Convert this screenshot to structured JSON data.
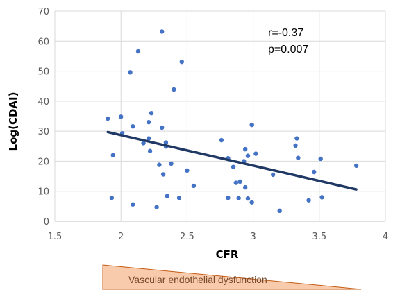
{
  "chart_data": {
    "type": "scatter",
    "xlabel": "CFR",
    "ylabel": "Log(CDAI)",
    "xlim": [
      1.5,
      4
    ],
    "ylim": [
      0,
      70
    ],
    "xticks": [
      "1.5",
      "2",
      "2.5",
      "3",
      "3.5",
      "4"
    ],
    "yticks": [
      "0",
      "10",
      "20",
      "30",
      "40",
      "50",
      "60",
      "70"
    ],
    "grid": "vertical and horizontal gridlines",
    "series": [
      {
        "marker_color": "#4472c4",
        "points": [
          [
            1.9,
            34.2
          ],
          [
            1.93,
            7.8
          ],
          [
            1.94,
            22.0
          ],
          [
            2.0,
            34.8
          ],
          [
            2.01,
            29.3
          ],
          [
            2.07,
            49.6
          ],
          [
            2.09,
            31.6
          ],
          [
            2.09,
            5.6
          ],
          [
            2.13,
            56.6
          ],
          [
            2.17,
            26.0
          ],
          [
            2.21,
            33.0
          ],
          [
            2.21,
            27.6
          ],
          [
            2.22,
            23.4
          ],
          [
            2.23,
            36.0
          ],
          [
            2.27,
            4.7
          ],
          [
            2.29,
            18.8
          ],
          [
            2.31,
            63.2
          ],
          [
            2.31,
            31.2
          ],
          [
            2.32,
            15.6
          ],
          [
            2.34,
            26.2
          ],
          [
            2.34,
            24.9
          ],
          [
            2.35,
            8.4
          ],
          [
            2.38,
            19.2
          ],
          [
            2.4,
            43.9
          ],
          [
            2.44,
            7.8
          ],
          [
            2.46,
            53.1
          ],
          [
            2.5,
            16.9
          ],
          [
            2.55,
            11.8
          ],
          [
            2.76,
            27.0
          ],
          [
            2.81,
            21.0
          ],
          [
            2.81,
            7.8
          ],
          [
            2.85,
            18.1
          ],
          [
            2.87,
            12.8
          ],
          [
            2.89,
            7.7
          ],
          [
            2.9,
            13.2
          ],
          [
            2.93,
            20.0
          ],
          [
            2.94,
            24.0
          ],
          [
            2.94,
            11.3
          ],
          [
            2.96,
            7.6
          ],
          [
            2.96,
            21.8
          ],
          [
            2.99,
            32.1
          ],
          [
            2.99,
            6.3
          ],
          [
            3.02,
            22.5
          ],
          [
            3.15,
            15.5
          ],
          [
            3.2,
            3.5
          ],
          [
            3.32,
            25.2
          ],
          [
            3.33,
            27.6
          ],
          [
            3.34,
            21.1
          ],
          [
            3.42,
            7.0
          ],
          [
            3.46,
            16.4
          ],
          [
            3.51,
            20.8
          ],
          [
            3.52,
            8.0
          ],
          [
            3.78,
            18.5
          ]
        ]
      }
    ],
    "trendline": {
      "x": [
        1.9,
        3.78
      ],
      "y": [
        29.7,
        10.6
      ],
      "color": "#1f3864"
    },
    "annotations": {
      "r": "r=-0.37",
      "p": "p=0.007"
    },
    "banner": {
      "label": "Vascular endothelial dysfunction",
      "fill": "#f8cbad",
      "stroke": "#c55a11"
    }
  }
}
